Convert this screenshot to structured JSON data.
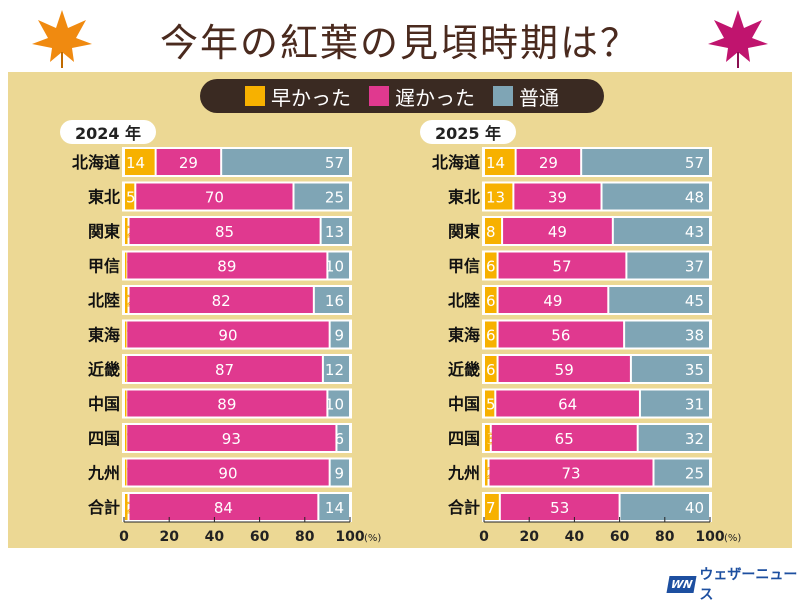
{
  "title": "今年の紅葉の見頃時期は？",
  "legend": [
    {
      "label": "早かった",
      "color": "#f7b100"
    },
    {
      "label": "遅かった",
      "color": "#e0398f"
    },
    {
      "label": "普通",
      "color": "#7fa5b5"
    }
  ],
  "logo": {
    "text": "ウェザーニュース"
  },
  "chart_data": [
    {
      "type": "bar",
      "stacked": true,
      "orientation": "horizontal",
      "title": "2024 年",
      "categories": [
        "北海道",
        "東北",
        "関東",
        "甲信",
        "北陸",
        "東海",
        "近畿",
        "中国",
        "四国",
        "九州",
        "合計"
      ],
      "series": [
        {
          "name": "早かった",
          "values": [
            14,
            5,
            2,
            1,
            2,
            1,
            1,
            1,
            1,
            1,
            2
          ]
        },
        {
          "name": "遅かった",
          "values": [
            29,
            70,
            85,
            89,
            82,
            90,
            87,
            89,
            93,
            90,
            84
          ]
        },
        {
          "name": "普通",
          "values": [
            57,
            25,
            13,
            10,
            16,
            9,
            12,
            10,
            6,
            9,
            14
          ]
        }
      ],
      "xlim": [
        0,
        100
      ],
      "xticks": [
        "0",
        "20",
        "40",
        "60",
        "80",
        "100"
      ],
      "xunit": "(%)"
    },
    {
      "type": "bar",
      "stacked": true,
      "orientation": "horizontal",
      "title": "2025 年",
      "categories": [
        "北海道",
        "東北",
        "関東",
        "甲信",
        "北陸",
        "東海",
        "近畿",
        "中国",
        "四国",
        "九州",
        "合計"
      ],
      "series": [
        {
          "name": "早かった",
          "values": [
            14,
            13,
            8,
            6,
            6,
            6,
            6,
            5,
            3,
            2,
            7
          ]
        },
        {
          "name": "遅かった",
          "values": [
            29,
            39,
            49,
            57,
            49,
            56,
            59,
            64,
            65,
            73,
            53
          ]
        },
        {
          "name": "普通",
          "values": [
            57,
            48,
            43,
            37,
            45,
            38,
            35,
            31,
            32,
            25,
            40
          ]
        }
      ],
      "xlim": [
        0,
        100
      ],
      "xticks": [
        "0",
        "20",
        "40",
        "60",
        "80",
        "100"
      ],
      "xunit": "(%)"
    }
  ]
}
